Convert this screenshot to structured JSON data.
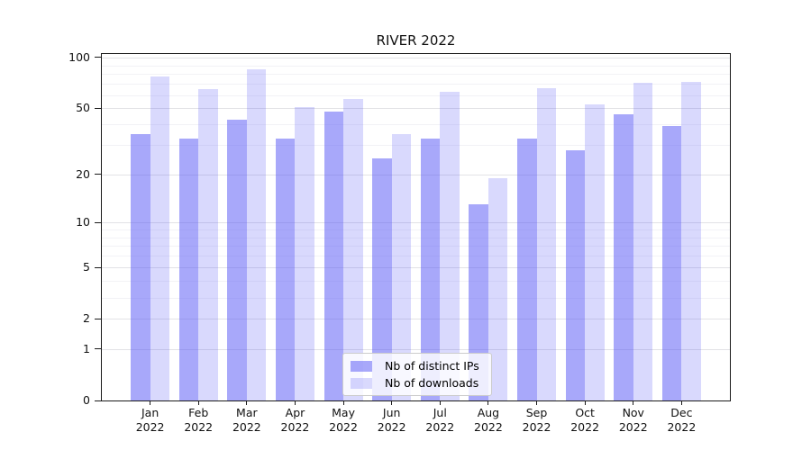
{
  "chart_data": {
    "type": "bar",
    "title": "RIVER 2022",
    "categories": [
      "Jan 2022",
      "Feb 2022",
      "Mar 2022",
      "Apr 2022",
      "May 2022",
      "Jun 2022",
      "Jul 2022",
      "Aug 2022",
      "Sep 2022",
      "Oct 2022",
      "Nov 2022",
      "Dec 2022"
    ],
    "series": [
      {
        "name": "Nb of distinct IPs",
        "color": "rgba(90,90,245,0.53)",
        "values": [
          35,
          33,
          43,
          33,
          48,
          25,
          33,
          13,
          33,
          28,
          46,
          39
        ]
      },
      {
        "name": "Nb of downloads",
        "color": "rgba(90,90,245,0.23)",
        "values": [
          77,
          65,
          85,
          51,
          57,
          35,
          63,
          19,
          66,
          53,
          71,
          72
        ]
      }
    ],
    "y_axis": {
      "scale": "log1p",
      "ticks": [
        0,
        1,
        2,
        5,
        10,
        20,
        50,
        100
      ],
      "minor_gridlines": [
        3,
        4,
        6,
        7,
        8,
        9,
        30,
        40,
        60,
        70,
        80,
        90
      ],
      "ylim": [
        0,
        104
      ]
    },
    "x_axis": {
      "tick_count": 12
    },
    "legend": {
      "position": "lower center"
    },
    "colors": {
      "major_grid": "#e2e2e6",
      "minor_grid": "#f2f2f6",
      "axis": "#1a1a1a",
      "text": "#111111"
    },
    "grid": "on"
  }
}
